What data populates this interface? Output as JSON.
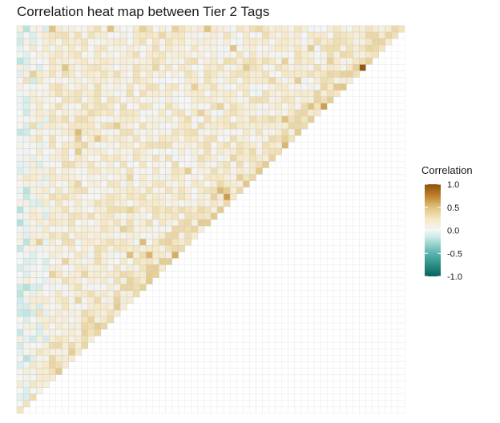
{
  "chart_data": {
    "type": "heatmap",
    "title": "Correlation heat map between Tier 2 Tags",
    "xlabel": "",
    "ylabel": "",
    "layout": "lower-triangle correlation matrix, diagonal from top-right to bottom-left",
    "grid": true,
    "n_tags": 60,
    "legend": {
      "title": "Correlation",
      "position": "right",
      "range": [
        -1.0,
        1.0
      ],
      "ticks": [
        1.0,
        0.5,
        0.0,
        -0.5,
        -1.0
      ],
      "tick_labels": [
        "1.0",
        "0.5",
        "0.0",
        "-0.5",
        "-1.0"
      ]
    },
    "colorscale": [
      {
        "value": -1.0,
        "color": "#01665e"
      },
      {
        "value": -0.5,
        "color": "#5ab4ac"
      },
      {
        "value": -0.15,
        "color": "#c7eae5"
      },
      {
        "value": 0.0,
        "color": "#f5f5f5"
      },
      {
        "value": 0.25,
        "color": "#f6e8c3"
      },
      {
        "value": 0.5,
        "color": "#dfc27d"
      },
      {
        "value": 0.75,
        "color": "#bf812d"
      },
      {
        "value": 1.0,
        "color": "#8c510a"
      }
    ],
    "value_summary": {
      "typical_range": [
        -0.15,
        0.35
      ],
      "left_columns_mean": -0.05,
      "center_mean": 0.15,
      "diagonal_band_mean": 0.3,
      "max_cell": {
        "row": 6,
        "col": 53,
        "value": 0.95
      }
    }
  }
}
